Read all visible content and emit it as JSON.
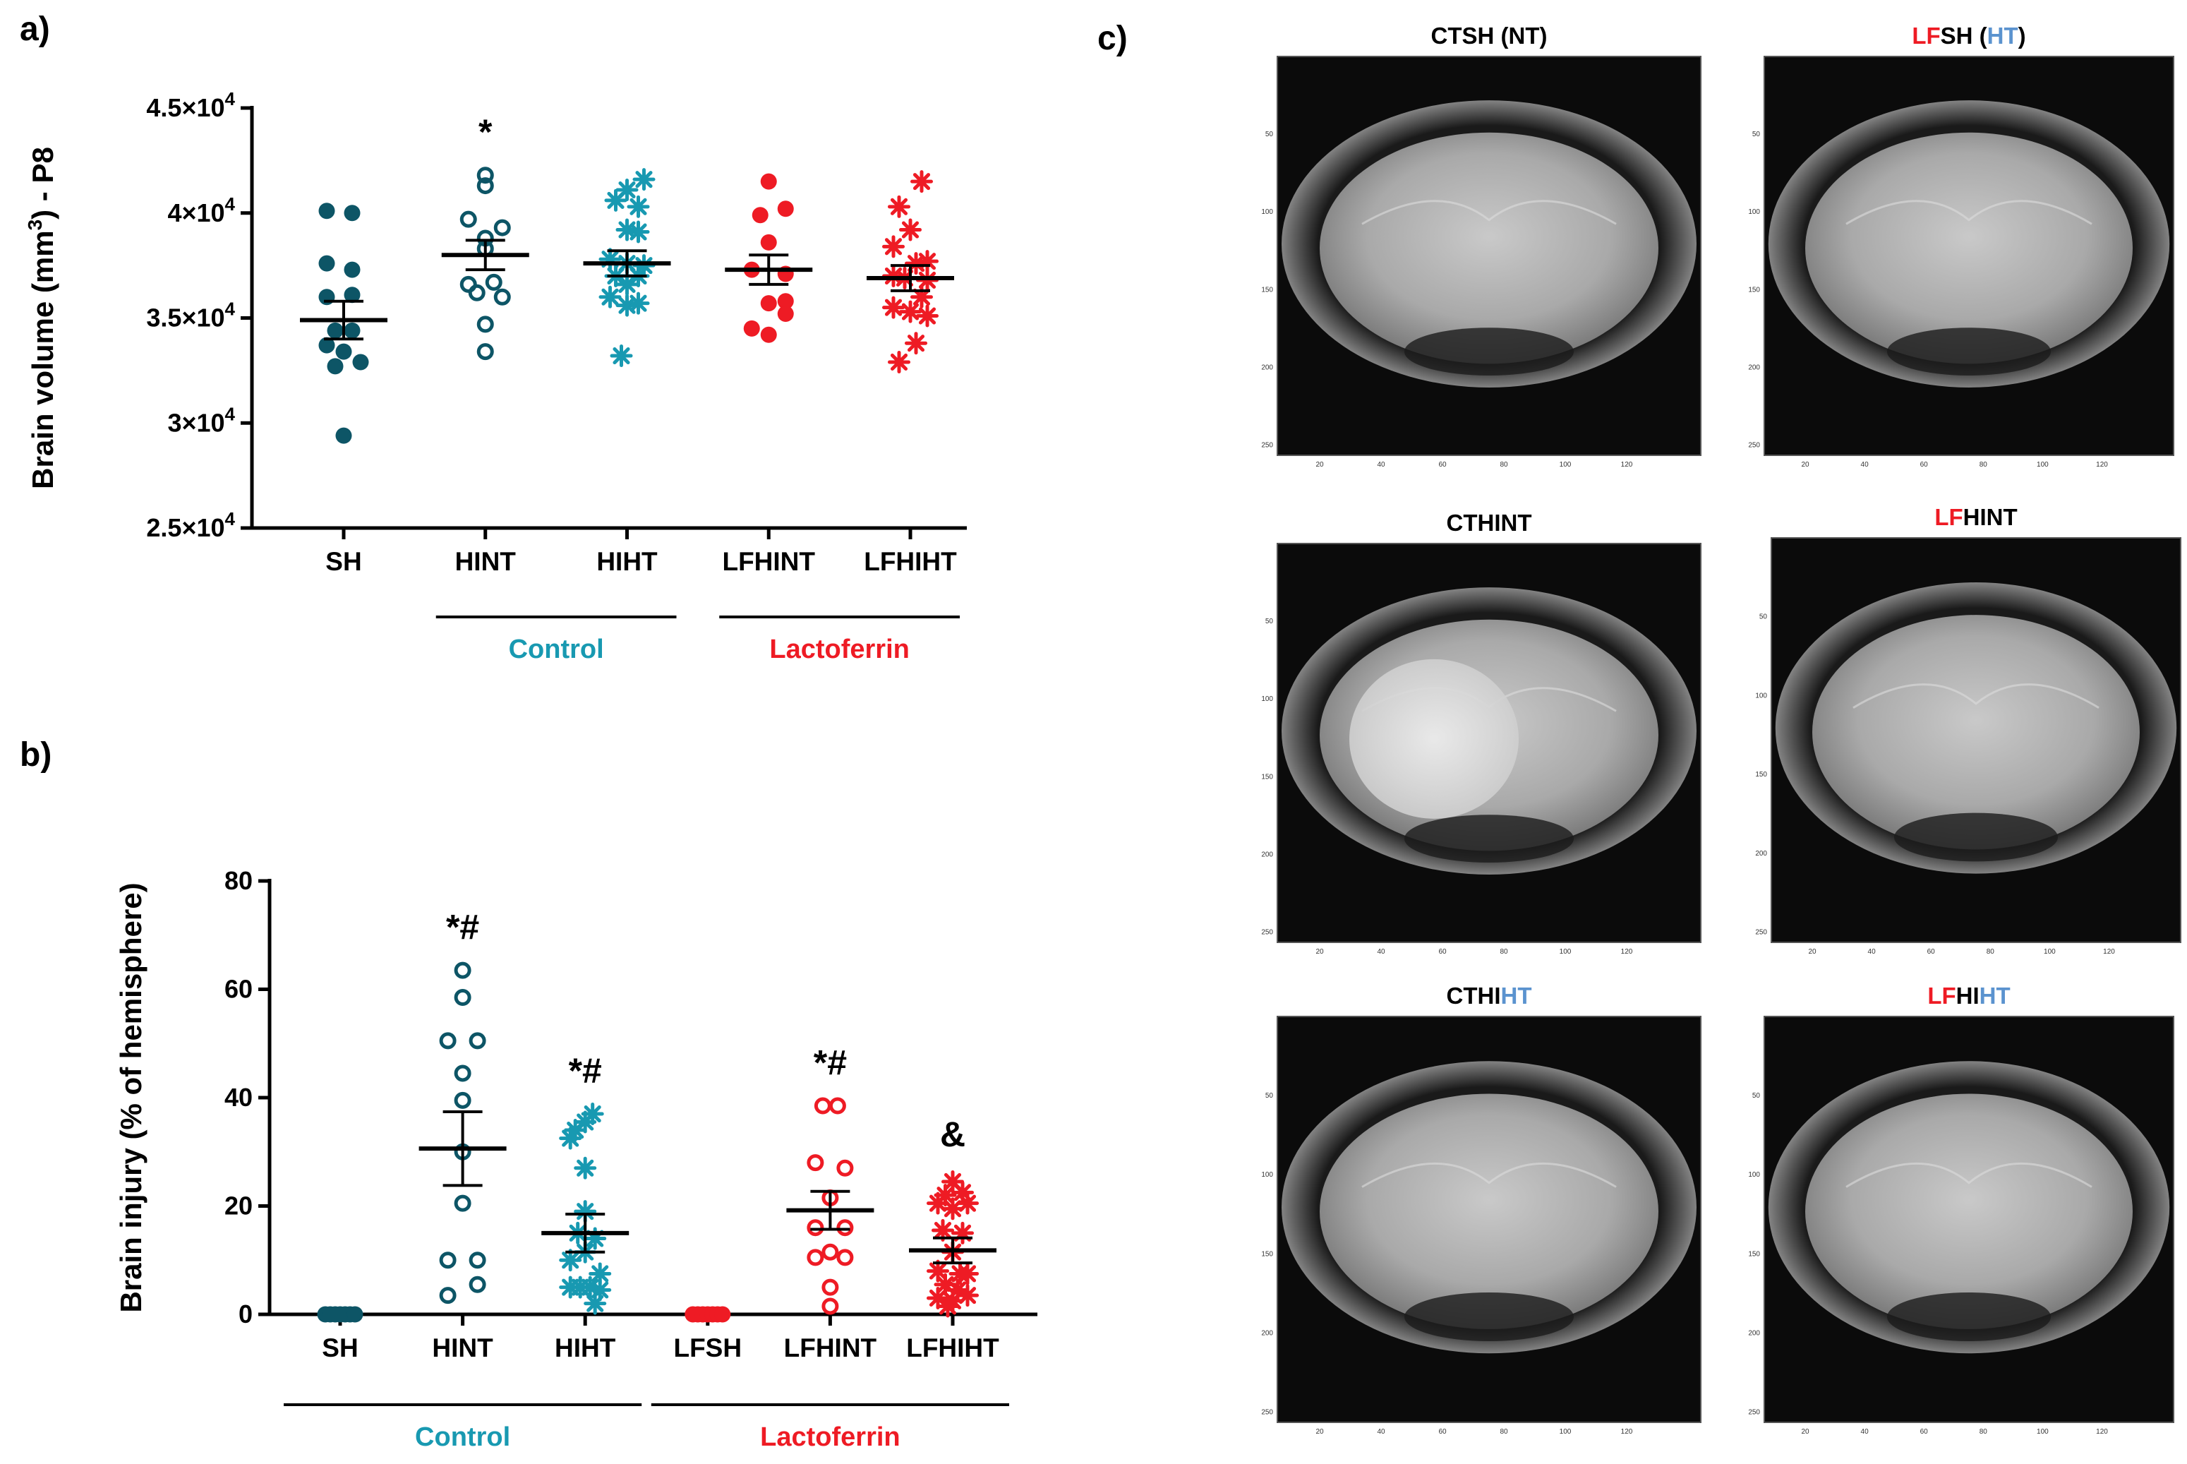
{
  "panel_labels": {
    "a": "a)",
    "b": "b)",
    "c": "c)"
  },
  "colors": {
    "sh": "#0d5566",
    "control": "#1899b1",
    "lf": "#ee1b24",
    "ht_blue": "#5b93cf",
    "black": "#000000"
  },
  "chart_data": [
    {
      "type": "scatter",
      "panel": "a",
      "ylabel": "Brain volume (mm3) - P8",
      "ylabel_parts": [
        "Brain volume (mm",
        "3",
        ") - P8"
      ],
      "ylim": [
        25000,
        45000
      ],
      "yticks": [
        {
          "value": 25000,
          "mant": "2.5×10",
          "exp": "4"
        },
        {
          "value": 30000,
          "mant": "3×10",
          "exp": "4"
        },
        {
          "value": 35000,
          "mant": "3.5×10",
          "exp": "4"
        },
        {
          "value": 40000,
          "mant": "4×10",
          "exp": "4"
        },
        {
          "value": 45000,
          "mant": "4.5×10",
          "exp": "4"
        }
      ],
      "categories": [
        "SH",
        "HINT",
        "HIHT",
        "LFHINT",
        "LFHIHT"
      ],
      "groups": [
        {
          "label": "Control",
          "from": 1,
          "to": 2,
          "color": "#1899b1"
        },
        {
          "label": "Lactoferrin",
          "from": 3,
          "to": 4,
          "color": "#ee1b24"
        }
      ],
      "series": [
        {
          "name": "SH",
          "marker": "filled-circle",
          "color": "#0d5566",
          "mean": 34900,
          "sem": 900,
          "points": [
            [
              -0.3,
              40100
            ],
            [
              0.15,
              40000
            ],
            [
              -0.3,
              37600
            ],
            [
              0.15,
              37300
            ],
            [
              -0.3,
              36000
            ],
            [
              0.15,
              36100
            ],
            [
              -0.15,
              34400
            ],
            [
              0.15,
              34400
            ],
            [
              -0.3,
              33700
            ],
            [
              0.0,
              33400
            ],
            [
              0.3,
              32900
            ],
            [
              -0.15,
              32700
            ],
            [
              0.0,
              29400
            ]
          ]
        },
        {
          "name": "HINT",
          "marker": "open-circle",
          "color": "#0d5566",
          "mean": 38000,
          "sem": 700,
          "significance": "*",
          "points": [
            [
              0.0,
              41800
            ],
            [
              0.0,
              41300
            ],
            [
              -0.3,
              39700
            ],
            [
              0.3,
              39300
            ],
            [
              0.0,
              38800
            ],
            [
              0.0,
              38300
            ],
            [
              -0.3,
              36600
            ],
            [
              0.15,
              36700
            ],
            [
              -0.15,
              36200
            ],
            [
              0.3,
              36000
            ],
            [
              0.0,
              34700
            ],
            [
              0.0,
              33400
            ]
          ]
        },
        {
          "name": "HIHT",
          "marker": "asterisk",
          "color": "#1899b1",
          "mean": 37600,
          "sem": 600,
          "points": [
            [
              0.3,
              41600
            ],
            [
              0.0,
              41100
            ],
            [
              -0.2,
              40600
            ],
            [
              0.2,
              40300
            ],
            [
              0.0,
              39200
            ],
            [
              0.2,
              39100
            ],
            [
              -0.3,
              37800
            ],
            [
              0.0,
              37600
            ],
            [
              0.3,
              37500
            ],
            [
              -0.2,
              37000
            ],
            [
              0.2,
              37000
            ],
            [
              0.0,
              36600
            ],
            [
              -0.3,
              36000
            ],
            [
              0.2,
              35700
            ],
            [
              0.0,
              35600
            ],
            [
              -0.1,
              33200
            ]
          ]
        },
        {
          "name": "LFHINT",
          "marker": "filled-circle",
          "color": "#ee1b24",
          "mean": 37300,
          "sem": 700,
          "points": [
            [
              0.0,
              41500
            ],
            [
              0.3,
              40200
            ],
            [
              -0.15,
              39900
            ],
            [
              0.0,
              38600
            ],
            [
              -0.3,
              37300
            ],
            [
              0.3,
              37100
            ],
            [
              0.0,
              35700
            ],
            [
              0.3,
              35800
            ],
            [
              -0.3,
              34500
            ],
            [
              0.0,
              34200
            ],
            [
              0.3,
              35200
            ]
          ]
        },
        {
          "name": "LFHIHT",
          "marker": "asterisk",
          "color": "#ee1b24",
          "mean": 36900,
          "sem": 600,
          "points": [
            [
              0.2,
              41500
            ],
            [
              -0.2,
              40300
            ],
            [
              0.0,
              39200
            ],
            [
              -0.3,
              38400
            ],
            [
              0.3,
              37700
            ],
            [
              0.1,
              37600
            ],
            [
              -0.3,
              37000
            ],
            [
              -0.1,
              36900
            ],
            [
              0.3,
              36800
            ],
            [
              0.2,
              36000
            ],
            [
              -0.3,
              35500
            ],
            [
              0.0,
              35300
            ],
            [
              0.3,
              35100
            ],
            [
              0.1,
              33800
            ],
            [
              -0.2,
              32900
            ]
          ]
        }
      ]
    },
    {
      "type": "scatter",
      "panel": "b",
      "ylabel": "Brain injury (% of hemisphere)",
      "ylim": [
        0,
        80
      ],
      "yticks": [
        {
          "value": 0,
          "label": "0"
        },
        {
          "value": 20,
          "label": "20"
        },
        {
          "value": 40,
          "label": "40"
        },
        {
          "value": 60,
          "label": "60"
        },
        {
          "value": 80,
          "label": "80"
        }
      ],
      "categories": [
        "SH",
        "HINT",
        "HIHT",
        "LFSH",
        "LFHINT",
        "LFHIHT"
      ],
      "groups": [
        {
          "label": "Control",
          "from": 0,
          "to": 2,
          "color": "#1899b1"
        },
        {
          "label": "Lactoferrin",
          "from": 3,
          "to": 5,
          "color": "#ee1b24"
        }
      ],
      "series": [
        {
          "name": "SH",
          "marker": "filled-circle",
          "color": "#0d5566",
          "mean": 0,
          "sem": 0,
          "points": [
            [
              -0.3,
              0
            ],
            [
              -0.2,
              0
            ],
            [
              -0.1,
              0
            ],
            [
              0.0,
              0
            ],
            [
              0.1,
              0
            ],
            [
              0.2,
              0
            ],
            [
              0.3,
              0
            ]
          ]
        },
        {
          "name": "HINT",
          "marker": "open-circle",
          "color": "#0d5566",
          "mean": 30.6,
          "sem": 6.8,
          "significance": "*#",
          "points": [
            [
              0.0,
              63.5
            ],
            [
              0.0,
              58.5
            ],
            [
              -0.3,
              50.5
            ],
            [
              0.3,
              50.5
            ],
            [
              0.0,
              44.5
            ],
            [
              0.0,
              39.5
            ],
            [
              0.0,
              30.0
            ],
            [
              0.0,
              20.5
            ],
            [
              -0.3,
              10.0
            ],
            [
              0.3,
              10.0
            ],
            [
              -0.3,
              3.5
            ],
            [
              0.3,
              5.5
            ]
          ]
        },
        {
          "name": "HIHT",
          "marker": "asterisk",
          "color": "#1899b1",
          "mean": 15.0,
          "sem": 3.5,
          "significance": "*#",
          "points": [
            [
              0.15,
              37.0
            ],
            [
              0.0,
              35.5
            ],
            [
              -0.2,
              34.0
            ],
            [
              -0.3,
              32.5
            ],
            [
              0.0,
              27.0
            ],
            [
              0.0,
              19.0
            ],
            [
              -0.15,
              15.0
            ],
            [
              0.2,
              14.0
            ],
            [
              0.0,
              11.5
            ],
            [
              -0.3,
              10.0
            ],
            [
              0.3,
              7.5
            ],
            [
              -0.3,
              5.0
            ],
            [
              -0.1,
              5.0
            ],
            [
              0.1,
              5.0
            ],
            [
              0.3,
              4.5
            ],
            [
              0.2,
              2.0
            ]
          ]
        },
        {
          "name": "LFSH",
          "marker": "filled-circle",
          "color": "#ee1b24",
          "mean": 0,
          "sem": 0,
          "points": [
            [
              -0.3,
              0
            ],
            [
              -0.2,
              0
            ],
            [
              -0.1,
              0
            ],
            [
              0.0,
              0
            ],
            [
              0.1,
              0
            ],
            [
              0.2,
              0
            ],
            [
              0.3,
              0
            ]
          ]
        },
        {
          "name": "LFHINT",
          "marker": "open-circle",
          "color": "#ee1b24",
          "mean": 19.2,
          "sem": 3.5,
          "significance": "*#",
          "points": [
            [
              -0.15,
              38.5
            ],
            [
              0.15,
              38.5
            ],
            [
              -0.3,
              28.0
            ],
            [
              0.3,
              27.0
            ],
            [
              0.0,
              21.5
            ],
            [
              -0.3,
              16.0
            ],
            [
              0.3,
              16.0
            ],
            [
              -0.3,
              10.5
            ],
            [
              0.3,
              10.5
            ],
            [
              0.0,
              11.5
            ],
            [
              0.0,
              5.0
            ],
            [
              0.0,
              1.5
            ]
          ]
        },
        {
          "name": "LFHIHT",
          "marker": "asterisk",
          "color": "#ee1b24",
          "mean": 11.8,
          "sem": 2.3,
          "significance": "&",
          "points": [
            [
              0.0,
              24.5
            ],
            [
              -0.15,
              22.0
            ],
            [
              0.2,
              22.5
            ],
            [
              -0.3,
              20.5
            ],
            [
              0.3,
              20.5
            ],
            [
              0.0,
              19.5
            ],
            [
              -0.2,
              15.5
            ],
            [
              0.2,
              15.0
            ],
            [
              0.0,
              11.5
            ],
            [
              -0.3,
              8.0
            ],
            [
              0.15,
              7.5
            ],
            [
              0.3,
              7.5
            ],
            [
              -0.15,
              5.5
            ],
            [
              0.1,
              4.5
            ],
            [
              -0.3,
              3.0
            ],
            [
              0.3,
              3.5
            ],
            [
              0.0,
              2.5
            ],
            [
              -0.1,
              1.5
            ]
          ]
        }
      ]
    }
  ],
  "mri": {
    "axis_x_ticks": [
      "20",
      "40",
      "60",
      "80",
      "100",
      "120"
    ],
    "axis_y_ticks": [
      "50",
      "100",
      "150",
      "200",
      "250"
    ],
    "panels": [
      {
        "title_parts": [
          {
            "text": "CTSH (NT)",
            "color": "black"
          }
        ]
      },
      {
        "title_parts": [
          {
            "text": "LF",
            "color": "lf"
          },
          {
            "text": "SH (",
            "color": "black"
          },
          {
            "text": "HT",
            "color": "ht_blue"
          },
          {
            "text": ")",
            "color": "black"
          }
        ]
      },
      {
        "title_parts": [
          {
            "text": "CTHINT",
            "color": "black"
          }
        ]
      },
      {
        "title_parts": [
          {
            "text": "LF",
            "color": "lf"
          },
          {
            "text": "HINT",
            "color": "black"
          }
        ]
      },
      {
        "title_parts": [
          {
            "text": "CTHI",
            "color": "black"
          },
          {
            "text": "HT",
            "color": "ht_blue"
          }
        ]
      },
      {
        "title_parts": [
          {
            "text": "LF",
            "color": "lf"
          },
          {
            "text": "HI",
            "color": "black"
          },
          {
            "text": "HT",
            "color": "ht_blue"
          }
        ]
      }
    ]
  }
}
